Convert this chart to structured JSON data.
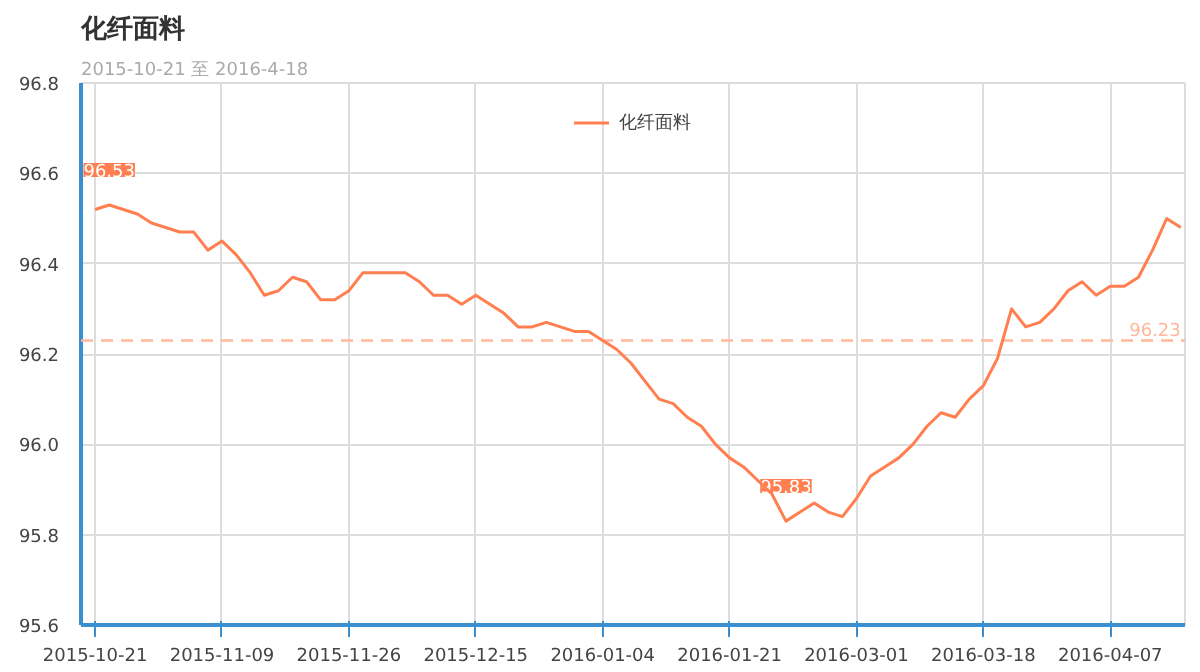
{
  "chart_data": {
    "type": "line",
    "title": "化纤面料",
    "subtitle": "2015-10-21 至 2016-4-18",
    "categories": [
      "2015-10-21",
      null,
      null,
      null,
      null,
      null,
      null,
      null,
      null,
      "2015-11-09",
      null,
      null,
      null,
      null,
      null,
      null,
      null,
      null,
      "2015-11-26",
      null,
      null,
      null,
      null,
      null,
      null,
      null,
      null,
      "2015-12-15",
      null,
      null,
      null,
      null,
      null,
      null,
      null,
      null,
      "2016-01-04",
      null,
      null,
      null,
      null,
      null,
      null,
      null,
      null,
      "2016-01-21",
      null,
      null,
      null,
      null,
      null,
      null,
      null,
      null,
      "2016-03-01",
      null,
      null,
      null,
      null,
      null,
      null,
      null,
      null,
      "2016-03-18",
      null,
      null,
      null,
      null,
      null,
      null,
      null,
      null,
      "2016-04-07",
      null,
      null,
      null,
      null,
      null
    ],
    "series": [
      {
        "name": "化纤面料",
        "color": "#ff7f50",
        "values": [
          96.52,
          96.53,
          96.52,
          96.51,
          96.49,
          96.48,
          96.47,
          96.47,
          96.43,
          96.45,
          96.42,
          96.38,
          96.33,
          96.34,
          96.37,
          96.36,
          96.32,
          96.32,
          96.34,
          96.38,
          96.38,
          96.38,
          96.38,
          96.36,
          96.33,
          96.33,
          96.31,
          96.33,
          96.31,
          96.29,
          96.26,
          96.26,
          96.27,
          96.26,
          96.25,
          96.25,
          96.23,
          96.21,
          96.18,
          96.14,
          96.1,
          96.09,
          96.06,
          96.04,
          96.0,
          95.97,
          95.95,
          95.92,
          95.89,
          95.83,
          95.85,
          95.87,
          95.85,
          95.84,
          95.88,
          95.93,
          95.95,
          95.97,
          96.0,
          96.04,
          96.07,
          96.06,
          96.1,
          96.13,
          96.19,
          96.3,
          96.26,
          96.27,
          96.3,
          96.34,
          96.36,
          96.33,
          96.35,
          96.35,
          96.37,
          96.43,
          96.5,
          96.48
        ]
      }
    ],
    "ylim": [
      95.6,
      96.8
    ],
    "yticks": [
      95.6,
      95.8,
      {
        "value": 96,
        "label": "96.0"
      },
      96.2,
      96.4,
      96.6,
      96.8
    ],
    "ref_lines": [
      {
        "axis": "y",
        "value": 96.23,
        "label": "96.23",
        "color": "#ffb89c",
        "line_style": "dashed"
      }
    ],
    "annotations": [
      {
        "text": "96.53",
        "y": 96.53
      },
      {
        "text": "95.83",
        "y": 95.83
      }
    ],
    "grid": true,
    "legend": "top"
  }
}
